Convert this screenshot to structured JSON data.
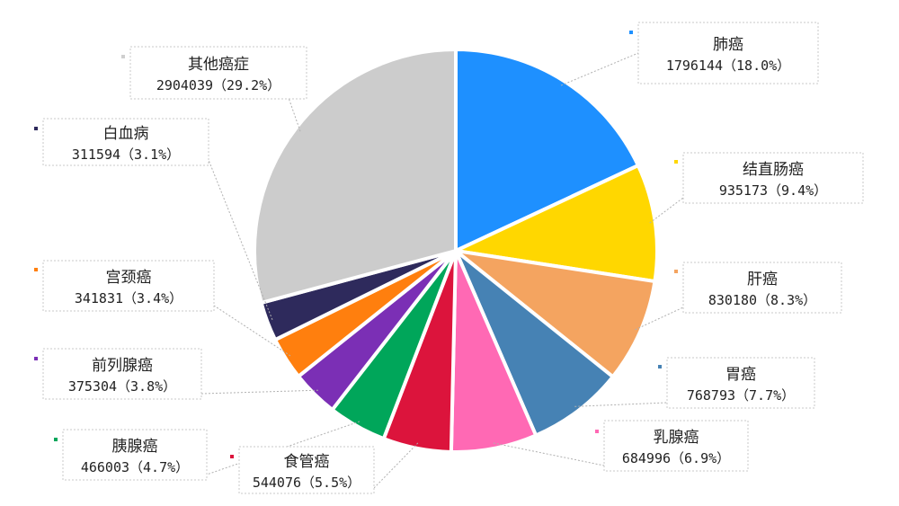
{
  "chart_data": {
    "type": "pie",
    "slices": [
      {
        "name": "肺癌",
        "value": 1796144,
        "percent_label": "18.0%",
        "color": "#1e90ff"
      },
      {
        "name": "结直肠癌",
        "value": 935173,
        "percent_label": "9.4%",
        "color": "#ffd700"
      },
      {
        "name": "肝癌",
        "value": 830180,
        "percent_label": "8.3%",
        "color": "#f4a460"
      },
      {
        "name": "胃癌",
        "value": 768793,
        "percent_label": "7.7%",
        "color": "#4682b4"
      },
      {
        "name": "乳腺癌",
        "value": 684996,
        "percent_label": "6.9%",
        "color": "#ff69b4"
      },
      {
        "name": "食管癌",
        "value": 544076,
        "percent_label": "5.5%",
        "color": "#dc143c"
      },
      {
        "name": "胰腺癌",
        "value": 466003,
        "percent_label": "4.7%",
        "color": "#00a65a"
      },
      {
        "name": "前列腺癌",
        "value": 375304,
        "percent_label": "3.8%",
        "color": "#7b2fb5"
      },
      {
        "name": "宫颈癌",
        "value": 341831,
        "percent_label": "3.4%",
        "color": "#ff7f0e"
      },
      {
        "name": "白血病",
        "value": 311594,
        "percent_label": "3.1%",
        "color": "#2e2a5c"
      },
      {
        "name": "其他癌症",
        "value": 2904039,
        "percent_label": "29.2%",
        "color": "#cccccc"
      }
    ]
  }
}
